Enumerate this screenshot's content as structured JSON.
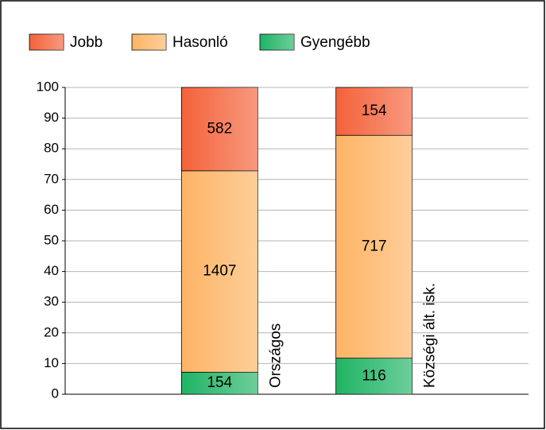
{
  "chart_data": {
    "type": "bar",
    "stack": "percent",
    "categories": [
      "Országos",
      "Községi ált. isk."
    ],
    "series": [
      {
        "name": "Jobb",
        "color": "#f4623a",
        "values": [
          582,
          154
        ]
      },
      {
        "name": "Hasonló",
        "color": "#fdb464",
        "values": [
          1407,
          717
        ]
      },
      {
        "name": "Gyengébb",
        "color": "#1fb464",
        "values": [
          154,
          116
        ]
      }
    ],
    "ylim": [
      0,
      100
    ],
    "yticks": [
      0,
      10,
      20,
      30,
      40,
      50,
      60,
      70,
      80,
      90,
      100
    ],
    "grid": true,
    "legend": "top"
  }
}
